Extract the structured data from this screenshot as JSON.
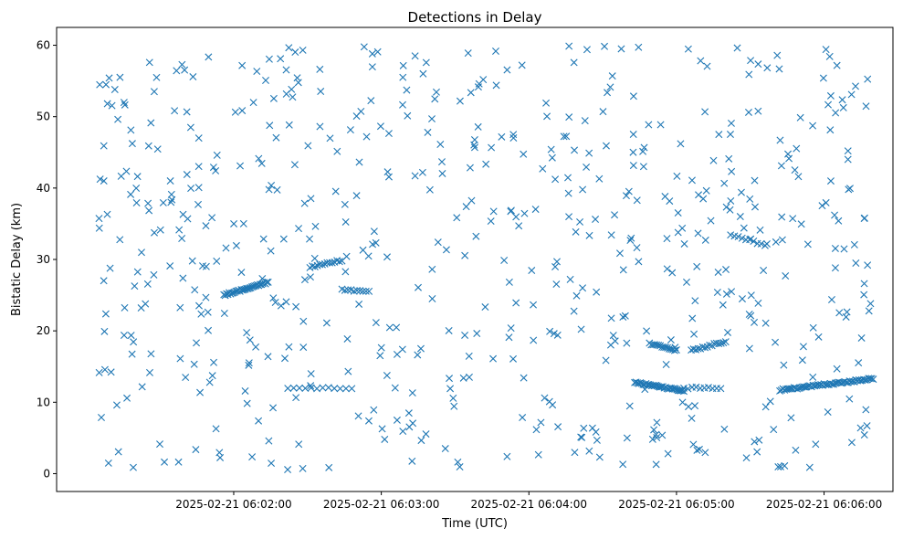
{
  "chart_data": {
    "type": "scatter",
    "title": "Detections in Delay",
    "xlabel": "Time (UTC)",
    "ylabel": "Bistatic Delay (km)",
    "marker": "x",
    "color": "#1f77b4",
    "x_format": "YYYY-MM-DD HH:MM:SS",
    "xlim": [
      "2025-02-21 06:00:48",
      "2025-02-21 06:06:28"
    ],
    "ylim": [
      -2.5,
      62.5
    ],
    "xticks": [
      "2025-02-21 06:02:00",
      "2025-02-21 06:03:00",
      "2025-02-21 06:04:00",
      "2025-02-21 06:05:00",
      "2025-02-21 06:06:00"
    ],
    "yticks": [
      0,
      10,
      20,
      30,
      40,
      50,
      60
    ],
    "grid": false,
    "legend": "none",
    "seed": 20250221,
    "random_points": 610,
    "time_range": [
      "2025-02-21 06:01:05",
      "2025-02-21 06:06:20"
    ],
    "delay_range": [
      0.5,
      60
    ],
    "tracks": [
      {
        "start": "2025-02-21 06:01:56",
        "end": "2025-02-21 06:02:14",
        "delay_start": 25.0,
        "delay_end": 26.8,
        "count": 34
      },
      {
        "start": "2025-02-21 06:02:31",
        "end": "2025-02-21 06:02:44",
        "delay_start": 28.9,
        "delay_end": 29.9,
        "count": 14
      },
      {
        "start": "2025-02-21 06:02:44",
        "end": "2025-02-21 06:02:55",
        "delay_start": 25.8,
        "delay_end": 25.5,
        "count": 10
      },
      {
        "start": "2025-02-21 06:02:22",
        "end": "2025-02-21 06:02:48",
        "delay_start": 12.0,
        "delay_end": 12.0,
        "count": 12
      },
      {
        "start": "2025-02-21 06:04:43",
        "end": "2025-02-21 06:05:03",
        "delay_start": 12.8,
        "delay_end": 11.6,
        "count": 36
      },
      {
        "start": "2025-02-21 06:05:03",
        "end": "2025-02-21 06:05:18",
        "delay_start": 12.0,
        "delay_end": 12.0,
        "count": 10
      },
      {
        "start": "2025-02-21 06:04:49",
        "end": "2025-02-21 06:05:00",
        "delay_start": 18.2,
        "delay_end": 17.3,
        "count": 16
      },
      {
        "start": "2025-02-21 06:05:06",
        "end": "2025-02-21 06:05:20",
        "delay_start": 17.3,
        "delay_end": 18.5,
        "count": 16
      },
      {
        "start": "2025-02-21 06:05:22",
        "end": "2025-02-21 06:05:36",
        "delay_start": 33.5,
        "delay_end": 32.0,
        "count": 10
      },
      {
        "start": "2025-02-21 06:05:42",
        "end": "2025-02-21 06:06:20",
        "delay_start": 11.7,
        "delay_end": 13.3,
        "count": 60
      }
    ]
  }
}
